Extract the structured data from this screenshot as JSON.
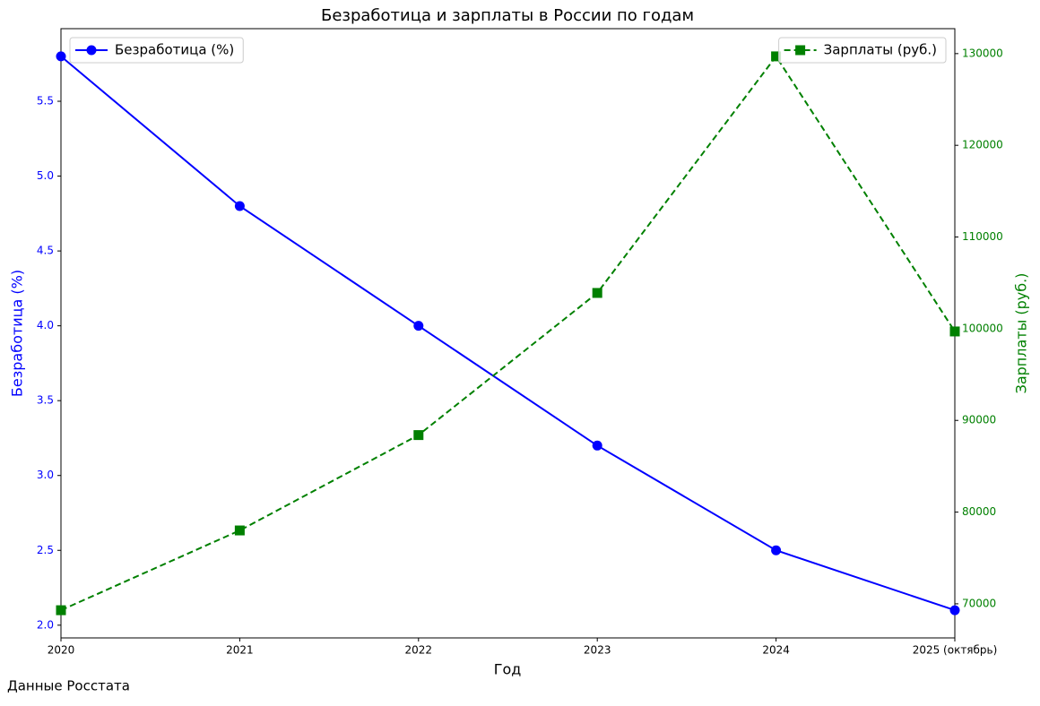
{
  "chart_data": {
    "type": "line",
    "title": "Безработица и зарплаты в России по годам",
    "xlabel": "Год",
    "ylabel": "Безработица (%)",
    "y2label": "Зарплаты (руб.)",
    "note": "Данные Росстата",
    "categories": [
      "2020",
      "2021",
      "2022",
      "2023",
      "2024",
      "2025 (октябрь)"
    ],
    "ylim": [
      1.915,
      5.985
    ],
    "yticks": [
      {
        "value": 2,
        "label": "2.0"
      },
      {
        "value": 2.5,
        "label": "2.5"
      },
      {
        "value": 3,
        "label": "3.0"
      },
      {
        "value": 3.5,
        "label": "3.5"
      },
      {
        "value": 4,
        "label": "4.0"
      },
      {
        "value": 4.5,
        "label": "4.5"
      },
      {
        "value": 5,
        "label": "5.0"
      },
      {
        "value": 5.5,
        "label": "5.5"
      }
    ],
    "y2lim": [
      66280,
      132720
    ],
    "y2ticks": [
      70000,
      80000,
      90000,
      100000,
      110000,
      120000,
      130000
    ],
    "series": [
      {
        "name": "Безработица (%)",
        "color": "#0000ff",
        "marker": "circle",
        "dash": "solid",
        "legend": "upper left",
        "values": [
          5.8,
          4.8,
          4.0,
          3.2,
          2.5,
          2.1
        ]
      },
      {
        "name": "Зарплаты (руб.)",
        "color": "#008000",
        "marker": "square",
        "dash": "dashed",
        "legend": "upper right",
        "axis": "y2",
        "values": [
          69300,
          78000,
          88400,
          103900,
          129700,
          99700
        ]
      }
    ]
  }
}
